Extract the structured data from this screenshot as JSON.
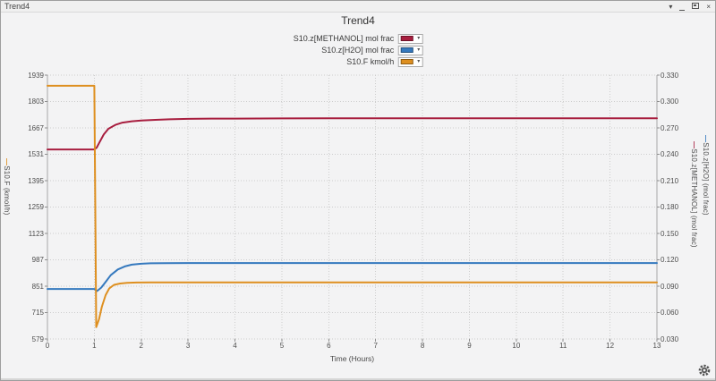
{
  "window": {
    "title": "Trend4",
    "controls": {
      "dropdown_glyph": "▾",
      "close_glyph": "×"
    }
  },
  "chart": {
    "title": "Trend4"
  },
  "legend": {
    "position": "top",
    "items": [
      {
        "label": "S10.z[METHANOL] mol frac",
        "color": "#a81e3f"
      },
      {
        "label": "S10.z[H2O] mol frac",
        "color": "#3579be"
      },
      {
        "label": "S10.F kmol/h",
        "color": "#de8f1f"
      }
    ]
  },
  "chart_data": {
    "type": "line",
    "title": "Trend4",
    "xlabel": "Time (Hours)",
    "xlim": [
      0,
      13
    ],
    "x_ticks": [
      0,
      1,
      2,
      3,
      4,
      5,
      6,
      7,
      8,
      9,
      10,
      11,
      12,
      13
    ],
    "grid": true,
    "legend_position": "top",
    "left_axis": {
      "label": "S10.F (kmol/h)",
      "color": "#de8f1f",
      "lim": [
        579,
        1939
      ],
      "ticks": [
        1939,
        1803,
        1667,
        1531,
        1395,
        1259,
        1123,
        987,
        851,
        715,
        579
      ]
    },
    "right_axis": {
      "lim": [
        0.03,
        0.33
      ],
      "ticks": [
        0.33,
        0.3,
        0.27,
        0.24,
        0.21,
        0.18,
        0.15,
        0.12,
        0.09,
        0.06,
        0.03
      ],
      "labels": [
        {
          "text": "S10.z[METHANOL] (mol frac)",
          "color": "#a81e3f"
        },
        {
          "text": "S10.z[H2O] (mol frac)",
          "color": "#3579be"
        }
      ]
    },
    "series": [
      {
        "name": "S10.z[METHANOL] mol frac",
        "axis": "right",
        "color": "#a81e3f",
        "points": [
          [
            0,
            0.2455
          ],
          [
            1,
            0.2455
          ],
          [
            1.05,
            0.2475
          ],
          [
            1.1,
            0.2525
          ],
          [
            1.2,
            0.2625
          ],
          [
            1.3,
            0.269
          ],
          [
            1.45,
            0.2735
          ],
          [
            1.6,
            0.276
          ],
          [
            1.8,
            0.2775
          ],
          [
            2,
            0.2783
          ],
          [
            2.3,
            0.2792
          ],
          [
            2.6,
            0.2798
          ],
          [
            3,
            0.2803
          ],
          [
            3.5,
            0.2806
          ],
          [
            4,
            0.2806
          ],
          [
            5,
            0.2808
          ],
          [
            6,
            0.281
          ],
          [
            8,
            0.281
          ],
          [
            10,
            0.281
          ],
          [
            13,
            0.281
          ]
        ]
      },
      {
        "name": "S10.z[H2O] mol frac",
        "axis": "right",
        "color": "#3579be",
        "points": [
          [
            0,
            0.0868
          ],
          [
            1,
            0.0868
          ],
          [
            1.06,
            0.0845
          ],
          [
            1.15,
            0.0885
          ],
          [
            1.25,
            0.0955
          ],
          [
            1.35,
            0.1025
          ],
          [
            1.5,
            0.109
          ],
          [
            1.65,
            0.1125
          ],
          [
            1.8,
            0.1145
          ],
          [
            2,
            0.1155
          ],
          [
            2.2,
            0.116
          ],
          [
            2.5,
            0.1162
          ],
          [
            3,
            0.1163
          ],
          [
            6,
            0.1163
          ],
          [
            10,
            0.1163
          ],
          [
            13,
            0.1163
          ]
        ]
      },
      {
        "name": "S10.F kmol/h",
        "axis": "left",
        "color": "#de8f1f",
        "points": [
          [
            0,
            1884
          ],
          [
            1,
            1884
          ],
          [
            1.04,
            640
          ],
          [
            1.1,
            680
          ],
          [
            1.16,
            745
          ],
          [
            1.24,
            805
          ],
          [
            1.32,
            840
          ],
          [
            1.42,
            858
          ],
          [
            1.55,
            865
          ],
          [
            1.7,
            868
          ],
          [
            1.9,
            870
          ],
          [
            2.2,
            871
          ],
          [
            3,
            871
          ],
          [
            6,
            871
          ],
          [
            10,
            871
          ],
          [
            13,
            871
          ]
        ]
      }
    ]
  }
}
